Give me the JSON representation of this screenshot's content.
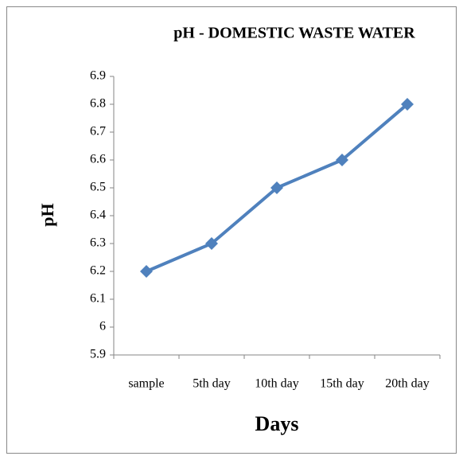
{
  "chart_data": {
    "type": "line",
    "title": "pH - DOMESTIC WASTE WATER",
    "x_label": "Days",
    "y_label": "pH",
    "categories": [
      "sample",
      "5th day",
      "10th day",
      "15th day",
      "20th day"
    ],
    "series": [
      {
        "name": "pH",
        "color": "#4f81bd",
        "values": [
          6.2,
          6.3,
          6.5,
          6.6,
          6.8
        ]
      }
    ],
    "ylim": [
      5.9,
      6.9
    ],
    "yticks": [
      5.9,
      6,
      6.1,
      6.2,
      6.3,
      6.4,
      6.5,
      6.6,
      6.7,
      6.8,
      6.9
    ],
    "grid": false,
    "legend": false
  }
}
